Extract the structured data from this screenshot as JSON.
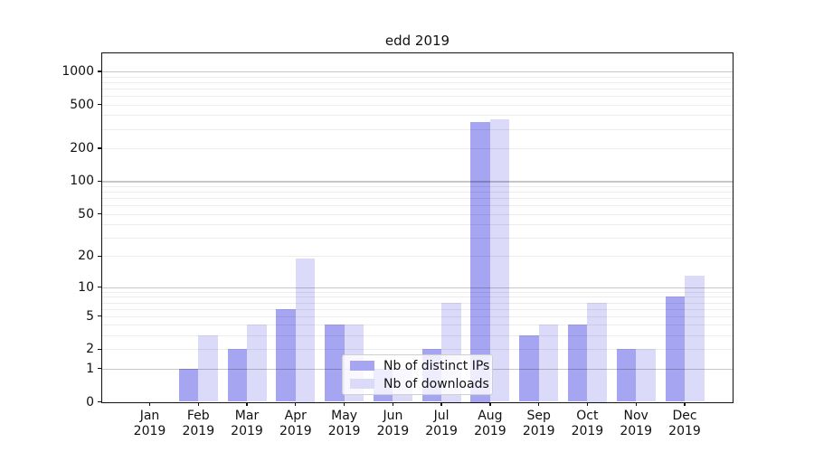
{
  "chart_data": {
    "type": "bar",
    "title": "edd 2019",
    "categories": [
      "Jan 2019",
      "Feb 2019",
      "Mar 2019",
      "Apr 2019",
      "May 2019",
      "Jun 2019",
      "Jul 2019",
      "Aug 2019",
      "Sep 2019",
      "Oct 2019",
      "Nov 2019",
      "Dec 2019"
    ],
    "series": [
      {
        "name": "Nb of distinct IPs",
        "color": "#a5a5f2",
        "values": [
          0,
          1,
          2,
          6,
          4,
          1,
          2,
          350,
          3,
          4,
          2,
          8
        ]
      },
      {
        "name": "Nb of downloads",
        "color": "#dbdbf9",
        "values": [
          0,
          3,
          4,
          19,
          4,
          1,
          7,
          368,
          4,
          7,
          2,
          13
        ]
      }
    ],
    "xlabel": "",
    "ylabel": "",
    "yscale": "log1p",
    "yticks": [
      0,
      1,
      2,
      5,
      10,
      20,
      50,
      100,
      200,
      500,
      1000
    ],
    "ylim": [
      0,
      1430
    ],
    "grid": true,
    "legend_position": "lower center"
  },
  "colors": {
    "grid_minor": "rgba(0,0,0,0.075)",
    "grid_major": "rgba(0,0,0,0.22)",
    "axis": "#111111"
  }
}
